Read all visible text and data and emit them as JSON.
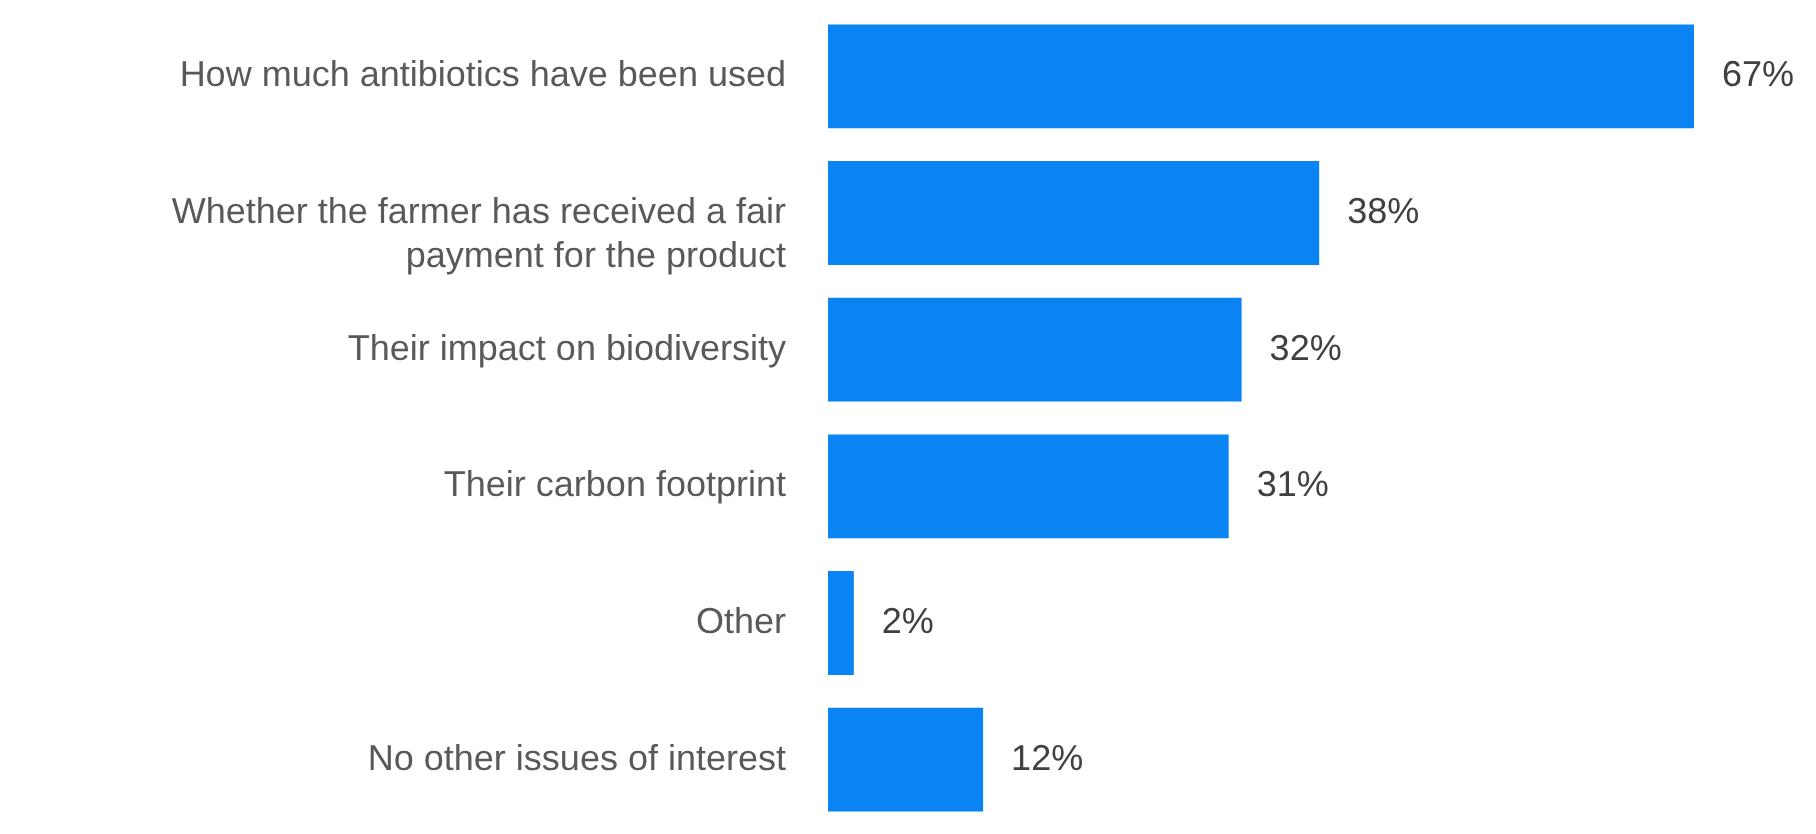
{
  "chart_data": {
    "type": "bar",
    "orientation": "horizontal",
    "categories": [
      "How much antibiotics have been used",
      "Whether the farmer has received a fair payment for the product",
      "Their impact on biodiversity",
      "Their carbon footprint",
      "Other",
      "No other issues of interest"
    ],
    "values": [
      67,
      38,
      32,
      31,
      2,
      12
    ],
    "color": "#0984f2",
    "value_labels": [
      "67%",
      "38%",
      "32%",
      "31%",
      "2%",
      "12%"
    ]
  }
}
